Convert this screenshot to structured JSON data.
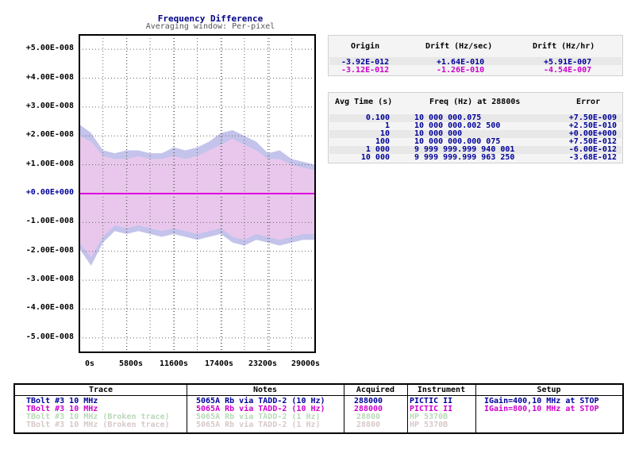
{
  "chart_data": {
    "type": "area",
    "title": "Frequency Difference",
    "subtitle": "Averaging window: Per-pixel",
    "ylim": [
      -5.5e-08,
      5.5e-08
    ],
    "xlim": [
      0,
      28800
    ],
    "y_ticks": [
      "+5.00E-008",
      "+4.00E-008",
      "+3.00E-008",
      "+2.00E-008",
      "+1.00E-008",
      "+0.00E+000",
      "-1.00E-008",
      "-2.00E-008",
      "-3.00E-008",
      "-4.00E-008",
      "-5.00E-008"
    ],
    "y_tick_values": [
      5e-08,
      4e-08,
      3e-08,
      2e-08,
      1e-08,
      0,
      -1e-08,
      -2e-08,
      -3e-08,
      -4e-08,
      -5e-08
    ],
    "x_ticks": [
      "0s",
      "5800s",
      "11600s",
      "17400s",
      "23200s",
      "29000s"
    ],
    "x_tick_values": [
      0,
      5800,
      11600,
      17400,
      23200,
      29000
    ],
    "grid": true,
    "series": [
      {
        "name": "TBolt #3 10 MHz (IGain=400)",
        "color": "#b8b8e8",
        "x": [
          0,
          1440,
          2880,
          4320,
          5760,
          7200,
          8640,
          10080,
          11520,
          12960,
          14400,
          15840,
          17280,
          18720,
          20160,
          21600,
          23040,
          24480,
          25920,
          27360,
          28800
        ],
        "upper": [
          2.4e-08,
          2.1e-08,
          1.5e-08,
          1.4e-08,
          1.5e-08,
          1.5e-08,
          1.4e-08,
          1.4e-08,
          1.6e-08,
          1.5e-08,
          1.6e-08,
          1.8e-08,
          2.1e-08,
          2.2e-08,
          2e-08,
          1.8e-08,
          1.4e-08,
          1.5e-08,
          1.2e-08,
          1.1e-08,
          1e-08
        ],
        "lower": [
          -1.9e-08,
          -2.5e-08,
          -1.7e-08,
          -1.3e-08,
          -1.4e-08,
          -1.3e-08,
          -1.4e-08,
          -1.5e-08,
          -1.4e-08,
          -1.5e-08,
          -1.6e-08,
          -1.5e-08,
          -1.4e-08,
          -1.7e-08,
          -1.8e-08,
          -1.6e-08,
          -1.7e-08,
          -1.8e-08,
          -1.7e-08,
          -1.6e-08,
          -1.6e-08
        ]
      },
      {
        "name": "TBolt #3 10 MHz (IGain=800)",
        "color": "#f0c8ec",
        "x": [
          0,
          1440,
          2880,
          4320,
          5760,
          7200,
          8640,
          10080,
          11520,
          12960,
          14400,
          15840,
          17280,
          18720,
          20160,
          21600,
          23040,
          24480,
          25920,
          27360,
          28800
        ],
        "upper": [
          2e-08,
          1.8e-08,
          1.3e-08,
          1.2e-08,
          1.2e-08,
          1.3e-08,
          1.2e-08,
          1.2e-08,
          1.3e-08,
          1.2e-08,
          1.3e-08,
          1.5e-08,
          1.7e-08,
          1.9e-08,
          1.7e-08,
          1.5e-08,
          1.2e-08,
          1.2e-08,
          1e-08,
          9e-09,
          8e-09
        ],
        "lower": [
          -1.7e-08,
          -2.2e-08,
          -1.5e-08,
          -1.1e-08,
          -1.2e-08,
          -1.1e-08,
          -1.2e-08,
          -1.3e-08,
          -1.2e-08,
          -1.3e-08,
          -1.4e-08,
          -1.3e-08,
          -1.2e-08,
          -1.5e-08,
          -1.6e-08,
          -1.4e-08,
          -1.5e-08,
          -1.6e-08,
          -1.5e-08,
          -1.4e-08,
          -1.4e-08
        ]
      },
      {
        "name": "mean",
        "color": "#dd00dd",
        "y": 0
      }
    ]
  },
  "drift_table": {
    "headers": [
      "Origin",
      "Drift (Hz/sec)",
      "Drift (Hz/hr)"
    ],
    "rows": [
      {
        "origin": "-3.92E-012",
        "hz_sec": "+1.64E-010",
        "hz_hr": "+5.91E-007",
        "color": "#000099"
      },
      {
        "origin": "-3.12E-012",
        "hz_sec": "-1.26E-010",
        "hz_hr": "-4.54E-007",
        "color": "#cc00cc"
      }
    ]
  },
  "avg_table": {
    "headers": [
      "Avg Time (s)",
      "Freq (Hz) at 28800s",
      "Error"
    ],
    "rows": [
      {
        "t": "0.100",
        "f": "10 000 000.075",
        "e": "+7.50E-009"
      },
      {
        "t": "1",
        "f": "10 000 000.002 500",
        "e": "+2.50E-010"
      },
      {
        "t": "10",
        "f": "10 000 000",
        "e": "+0.00E+000"
      },
      {
        "t": "100",
        "f": "10 000 000.000 075",
        "e": "+7.50E-012"
      },
      {
        "t": "1 000",
        "f": "9 999 999.999 940 001",
        "e": "-6.00E-012"
      },
      {
        "t": "10 000",
        "f": "9 999 999.999 963 250",
        "e": "-3.68E-012"
      }
    ],
    "color": "#000099"
  },
  "legend": {
    "headers": [
      "Trace",
      "Notes",
      "Acquired",
      "Instrument",
      "Setup"
    ],
    "rows": [
      {
        "trace": "TBolt #3 10 MHz",
        "notes": "5065A Rb via TADD-2 (10 Hz)",
        "acq": "288000",
        "inst": "PICTIC II",
        "setup": "IGain=400,10 MHz at STOP",
        "color": "#000099"
      },
      {
        "trace": "TBolt #3 10 MHz",
        "notes": "5065A Rb via TADD-2 (10 Hz)",
        "acq": "288000",
        "inst": "PICTIC II",
        "setup": "IGain=800,10 MHz at STOP",
        "color": "#cc00cc"
      },
      {
        "trace": "TBolt #3 10 MHz (Broken trace)",
        "notes": "5065A Rb via TADD-2 (1 Hz)",
        "acq": "28800",
        "inst": "HP 5370B",
        "setup": "",
        "color": "#b8d8b8"
      },
      {
        "trace": "TBolt #3 10 MHz (Broken trace)",
        "notes": "5065A Rb via TADD-2 (1 Hz)",
        "acq": "28800",
        "inst": "HP 5370B",
        "setup": "",
        "color": "#d8c8c8"
      }
    ]
  }
}
